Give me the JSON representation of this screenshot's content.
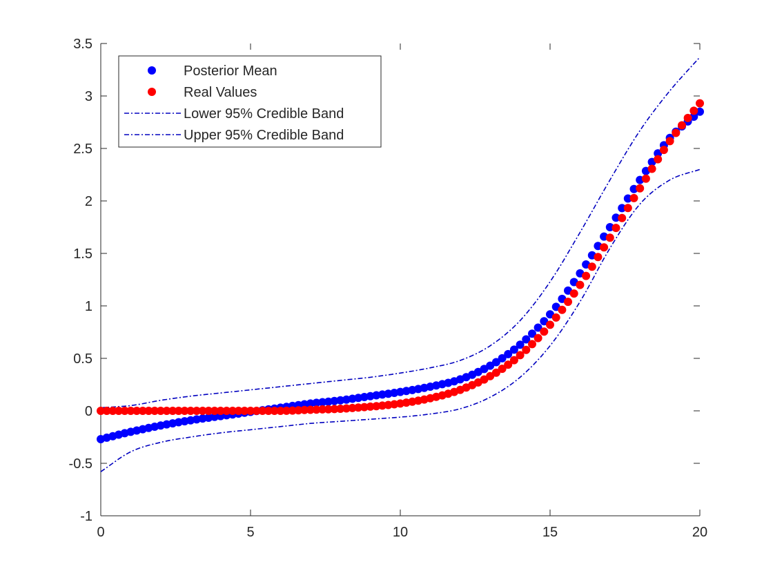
{
  "chart_data": {
    "type": "scatter",
    "title": "",
    "xlabel": "",
    "ylabel": "",
    "xlim": [
      0,
      20
    ],
    "ylim": [
      -1,
      3.5
    ],
    "x_ticks": [
      "0",
      "5",
      "10",
      "15",
      "20"
    ],
    "y_ticks": [
      "-1",
      "-0.5",
      "0",
      "0.5",
      "1",
      "1.5",
      "2",
      "2.5",
      "3",
      "3.5"
    ],
    "grid": false,
    "legend_position": "top-left",
    "series": [
      {
        "name": "Posterior Mean",
        "kind": "markers",
        "color": "#0000ff",
        "x": [
          0,
          1,
          2,
          3,
          4,
          5,
          6,
          7,
          8,
          9,
          10,
          11,
          12,
          13,
          14,
          15,
          16,
          17,
          18,
          19,
          20
        ],
        "y": [
          -0.27,
          -0.2,
          -0.14,
          -0.09,
          -0.05,
          -0.01,
          0.03,
          0.07,
          0.1,
          0.14,
          0.18,
          0.23,
          0.3,
          0.43,
          0.63,
          0.92,
          1.31,
          1.75,
          2.2,
          2.6,
          2.85
        ]
      },
      {
        "name": "Real Values",
        "kind": "markers",
        "color": "#ff0000",
        "x": [
          0,
          1,
          2,
          3,
          4,
          5,
          6,
          7,
          8,
          9,
          10,
          11,
          12,
          13,
          14,
          15,
          16,
          17,
          18,
          19,
          20
        ],
        "y": [
          0.0,
          0.0,
          0.0,
          0.0,
          0.0,
          0.0,
          0.0,
          0.01,
          0.02,
          0.04,
          0.07,
          0.12,
          0.2,
          0.33,
          0.53,
          0.82,
          1.2,
          1.65,
          2.12,
          2.57,
          2.93
        ]
      },
      {
        "name": "Lower 95% Credible Band",
        "kind": "dashdot",
        "color": "#0000bf",
        "x": [
          0,
          1,
          2,
          3,
          4,
          5,
          6,
          7,
          8,
          9,
          10,
          11,
          12,
          13,
          14,
          15,
          16,
          17,
          18,
          19,
          20
        ],
        "y": [
          -0.58,
          -0.39,
          -0.3,
          -0.25,
          -0.21,
          -0.18,
          -0.15,
          -0.12,
          -0.1,
          -0.08,
          -0.06,
          -0.03,
          0.02,
          0.13,
          0.32,
          0.62,
          1.04,
          1.55,
          1.97,
          2.2,
          2.3
        ]
      },
      {
        "name": "Upper 95% Credible Band",
        "kind": "dashdot",
        "color": "#0000bf",
        "x": [
          0,
          1,
          2,
          3,
          4,
          5,
          6,
          7,
          8,
          9,
          10,
          11,
          12,
          13,
          14,
          15,
          16,
          17,
          18,
          19,
          20
        ],
        "y": [
          0.03,
          0.05,
          0.1,
          0.14,
          0.17,
          0.2,
          0.23,
          0.26,
          0.29,
          0.32,
          0.36,
          0.41,
          0.48,
          0.62,
          0.86,
          1.23,
          1.7,
          2.2,
          2.67,
          3.05,
          3.37
        ]
      }
    ]
  }
}
